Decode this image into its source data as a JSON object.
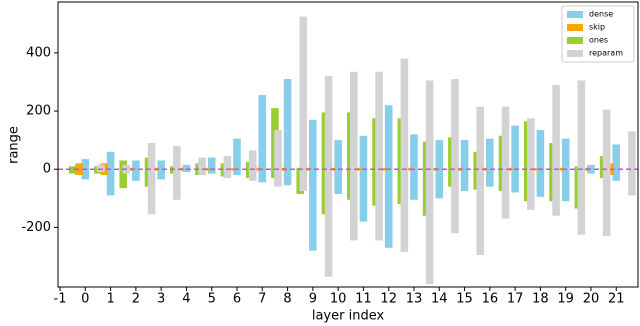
{
  "chart_data": {
    "type": "range-bar",
    "x_label": "layer index",
    "y_label": "range",
    "categories": [
      0,
      1,
      2,
      3,
      4,
      5,
      6,
      7,
      8,
      9,
      10,
      11,
      12,
      13,
      14,
      15,
      16,
      17,
      18,
      19,
      20,
      21
    ],
    "series": [
      {
        "name": "dense",
        "color": "#87ceeb",
        "values": [
          35,
          60,
          30,
          30,
          15,
          40,
          105,
          255,
          310,
          170,
          100,
          115,
          220,
          120,
          100,
          100,
          105,
          150,
          135,
          105,
          15,
          85
        ],
        "lows": [
          -35,
          -90,
          -40,
          -35,
          -10,
          -15,
          -20,
          -45,
          -55,
          -280,
          -85,
          -180,
          -270,
          -105,
          -100,
          -75,
          -60,
          -80,
          -95,
          -110,
          -15,
          -40
        ]
      },
      {
        "name": "skip",
        "color": "#ffa500",
        "values": [
          20,
          20,
          5,
          5,
          5,
          5,
          5,
          5,
          5,
          5,
          5,
          5,
          5,
          5,
          5,
          5,
          5,
          5,
          5,
          5,
          5,
          20
        ],
        "lows": [
          -20,
          -20,
          -5,
          -5,
          -5,
          -5,
          -5,
          -5,
          -5,
          -5,
          -5,
          -5,
          -5,
          -5,
          -5,
          -5,
          -5,
          -5,
          -5,
          -5,
          -5,
          -20
        ]
      },
      {
        "name": "ones",
        "color": "#9acd32",
        "values": [
          10,
          10,
          30,
          40,
          10,
          20,
          20,
          25,
          210,
          5,
          195,
          195,
          175,
          175,
          95,
          110,
          60,
          115,
          165,
          90,
          10,
          45
        ],
        "lows": [
          -15,
          -15,
          -65,
          -60,
          -15,
          -20,
          -25,
          -30,
          -30,
          -85,
          -155,
          -105,
          -125,
          -120,
          -160,
          -60,
          -70,
          -75,
          -110,
          -110,
          -135,
          -30
        ]
      },
      {
        "name": "reparam",
        "color": "#d3d3d3",
        "values": [
          15,
          15,
          90,
          80,
          40,
          45,
          65,
          135,
          525,
          320,
          335,
          335,
          380,
          305,
          310,
          215,
          215,
          175,
          290,
          305,
          205,
          130
        ],
        "lows": [
          -10,
          -15,
          -155,
          -105,
          -20,
          -30,
          -40,
          -60,
          -75,
          -370,
          -245,
          -245,
          -285,
          -395,
          -220,
          -295,
          -170,
          -140,
          -160,
          -225,
          -230,
          -90
        ]
      }
    ],
    "xlim": [
      -1.08,
      21.86
    ],
    "ylim": [
      -405,
      575
    ],
    "xticks": [
      -1,
      0,
      1,
      2,
      3,
      4,
      5,
      6,
      7,
      8,
      9,
      10,
      11,
      12,
      13,
      14,
      15,
      16,
      17,
      18,
      19,
      20,
      21
    ],
    "yticks": [
      -200,
      0,
      200,
      400
    ],
    "legend": "upper right"
  }
}
